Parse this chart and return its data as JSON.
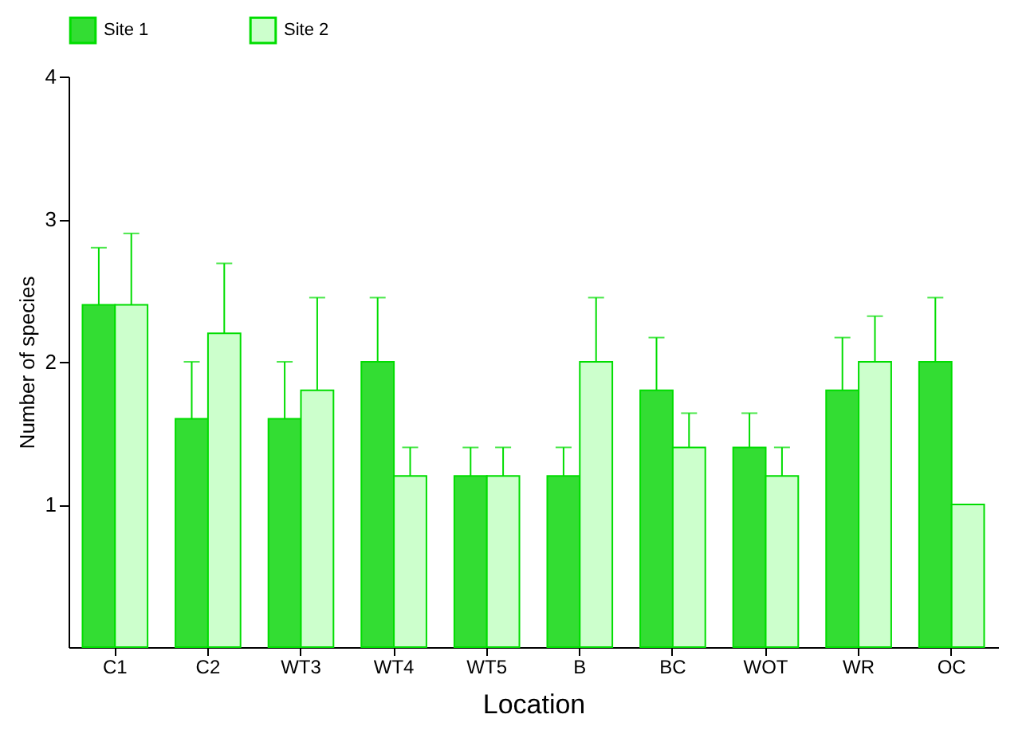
{
  "chart_data": {
    "type": "bar",
    "xlabel": "Location",
    "ylabel": "Number of species",
    "categories": [
      "C1",
      "C2",
      "WT3",
      "WT4",
      "WT5",
      "B",
      "BC",
      "WOT",
      "WR",
      "OC"
    ],
    "series": [
      {
        "name": "Site 1",
        "color": "#33dd33",
        "values": [
          2.4,
          1.6,
          1.6,
          2.0,
          1.2,
          1.2,
          1.8,
          1.4,
          1.8,
          2.0
        ],
        "errors": [
          [
            2.4,
            2.8
          ],
          [
            1.6,
            2.0
          ],
          [
            1.6,
            2.0
          ],
          [
            2.0,
            2.45
          ],
          [
            1.2,
            1.4
          ],
          [
            1.2,
            1.4
          ],
          [
            1.8,
            2.17
          ],
          [
            1.4,
            1.64
          ],
          [
            1.8,
            2.17
          ],
          [
            2.0,
            2.45
          ]
        ]
      },
      {
        "name": "Site 2",
        "color": "#ccffcc",
        "values": [
          2.4,
          2.2,
          1.8,
          1.2,
          1.2,
          2.0,
          1.4,
          1.2,
          2.0,
          1.0
        ],
        "errors": [
          [
            2.4,
            2.9
          ],
          [
            2.2,
            2.69
          ],
          [
            1.8,
            2.45
          ],
          [
            1.2,
            1.4
          ],
          [
            1.2,
            1.4
          ],
          [
            2.0,
            2.45
          ],
          [
            1.4,
            1.64
          ],
          [
            1.2,
            1.4
          ],
          [
            2.0,
            2.32
          ],
          null
        ]
      }
    ],
    "ylim": [
      0,
      4
    ],
    "yticks": [
      1,
      2,
      3,
      4
    ],
    "grid": false,
    "legend": "top"
  }
}
